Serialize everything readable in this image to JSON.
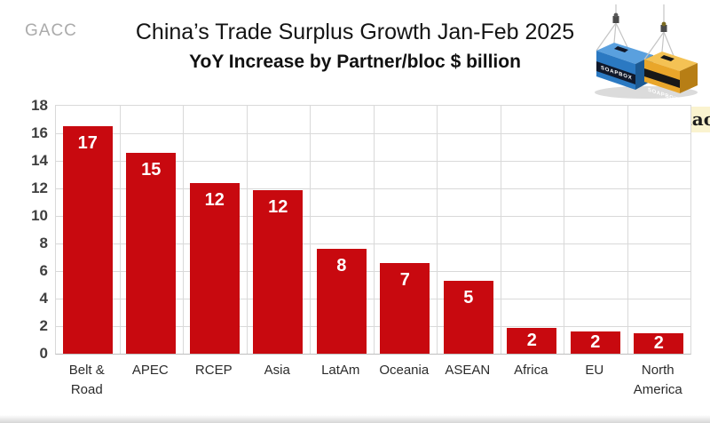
{
  "header": {
    "watermark_left": "GACC",
    "title": "China’s Trade Surplus Growth Jan-Feb 2025",
    "subtitle": "YoY Increase by Partner/bloc $ billion",
    "tg_badge": "TG @daokedao",
    "container_label": "SOAPBOX"
  },
  "chart_data": {
    "type": "bar",
    "title": "China’s Trade Surplus Growth Jan-Feb 2025",
    "subtitle": "YoY Increase by Partner/bloc $ billion",
    "xlabel": "",
    "ylabel": "",
    "categories": [
      "Belt & Road",
      "APEC",
      "RCEP",
      "Asia",
      "LatAm",
      "Oceania",
      "ASEAN",
      "Africa",
      "EU",
      "North America"
    ],
    "values": [
      16.5,
      14.6,
      12.4,
      11.9,
      7.6,
      6.6,
      5.3,
      1.9,
      1.6,
      1.5
    ],
    "bar_labels": [
      "17",
      "15",
      "12",
      "12",
      "8",
      "7",
      "5",
      "2",
      "2",
      "2"
    ],
    "ylim": [
      0,
      18
    ],
    "yticks": [
      0,
      2,
      4,
      6,
      8,
      10,
      12,
      14,
      16,
      18
    ],
    "grid": true,
    "grid_vertical": true,
    "legend_position": "none",
    "units": "$ billion"
  },
  "colors": {
    "bar": "#c8090f",
    "gridline": "#d9d9d9",
    "tg_badge_bg": "#faf3cf",
    "watermark_grey": "#ababab",
    "blue_container": "#2b79c2",
    "orange_container": "#e9a62a"
  }
}
